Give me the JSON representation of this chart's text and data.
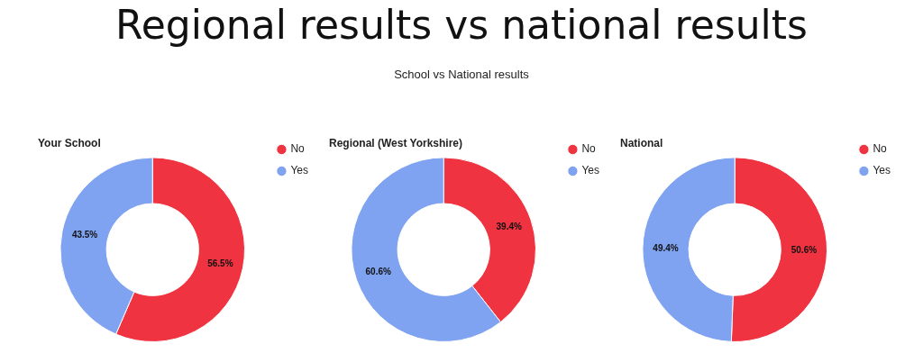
{
  "chart_data": [
    {
      "type": "other",
      "title": "Regional results vs national results",
      "subtitle": "School vs National results"
    },
    {
      "type": "donut",
      "title": "Your School",
      "categories": [
        "No",
        "Yes"
      ],
      "values": [
        56.5,
        43.5
      ],
      "colors": [
        "#ef3340",
        "#7fa3f0"
      ],
      "value_labels": [
        "56.5%",
        "43.5%"
      ],
      "legend": "top right"
    },
    {
      "type": "donut",
      "title": "Regional (West Yorkshire)",
      "categories": [
        "No",
        "Yes"
      ],
      "values": [
        39.4,
        60.6
      ],
      "colors": [
        "#ef3340",
        "#7fa3f0"
      ],
      "value_labels": [
        "39.4%",
        "60.6%"
      ],
      "legend": "top right"
    },
    {
      "type": "donut",
      "title": "National",
      "categories": [
        "No",
        "Yes"
      ],
      "values": [
        50.6,
        49.4
      ],
      "colors": [
        "#ef3340",
        "#7fa3f0"
      ],
      "value_labels": [
        "50.6%",
        "49.4%"
      ],
      "legend": "top right"
    }
  ]
}
